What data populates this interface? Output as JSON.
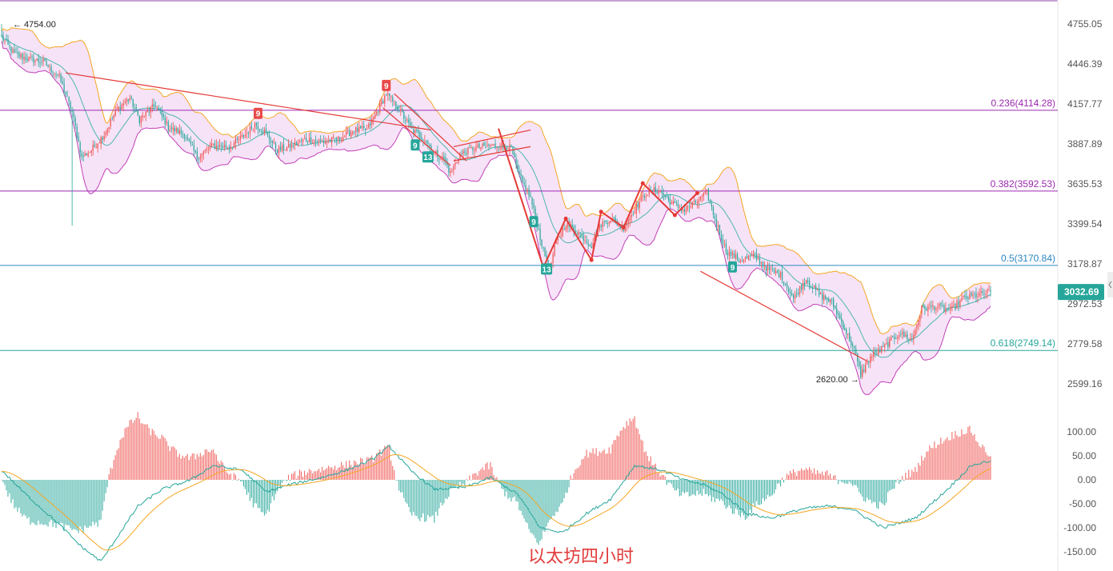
{
  "chart_data": {
    "type": "candlestick",
    "caption": "以太坊四小时",
    "price_axis": {
      "ticks": [
        "4755.05",
        "4446.39",
        "4157.77",
        "3887.89",
        "3635.53",
        "3399.54",
        "3178.87",
        "2972.53",
        "2779.58",
        "2599.16"
      ],
      "tick_values": [
        4755.05,
        4446.39,
        4157.77,
        3887.89,
        3635.53,
        3399.54,
        3178.87,
        2972.53,
        2779.58,
        2599.16
      ],
      "scale": "log"
    },
    "macd_axis": {
      "ticks": [
        "100.00",
        "50.00",
        "0.00",
        "-50.00",
        "-100.00",
        "-150.00"
      ],
      "tick_values": [
        100,
        50,
        0,
        -50,
        -100,
        -150
      ]
    },
    "last_price": {
      "label": "3032.69",
      "value": 3032.69,
      "color": "#26a69a"
    },
    "high_marker": {
      "label": "← 4754.00",
      "value": 4754.0
    },
    "low_marker": {
      "label": "2620.00 →",
      "value": 2620.0
    },
    "fib_levels": [
      {
        "label": "0.236(4114.28)",
        "value": 4114.28,
        "color": "#9c27b0"
      },
      {
        "label": "0.382(3592.53)",
        "value": 3592.53,
        "color": "#9c27b0"
      },
      {
        "label": "0.5(3170.84)",
        "value": 3170.84,
        "color": "#2e86c1"
      },
      {
        "label": "0.618(2749.14)",
        "value": 2749.14,
        "color": "#26a69a"
      }
    ],
    "td_markers": [
      {
        "text": "9",
        "bar": 160,
        "side": "up"
      },
      {
        "text": "9",
        "bar": 240,
        "side": "up"
      },
      {
        "text": "9",
        "bar": 258,
        "side": "down"
      },
      {
        "text": "13",
        "bar": 266,
        "side": "down"
      },
      {
        "text": "9",
        "bar": 332,
        "side": "down"
      },
      {
        "text": "13",
        "bar": 340,
        "side": "down"
      },
      {
        "text": "9",
        "bar": 456,
        "side": "down"
      }
    ],
    "close_path": [
      [
        0,
        4650
      ],
      [
        8,
        4520
      ],
      [
        18,
        4480
      ],
      [
        26,
        4460
      ],
      [
        36,
        4350
      ],
      [
        44,
        4100
      ],
      [
        50,
        3800
      ],
      [
        56,
        3850
      ],
      [
        64,
        3950
      ],
      [
        72,
        4120
      ],
      [
        80,
        4200
      ],
      [
        86,
        4050
      ],
      [
        96,
        4150
      ],
      [
        104,
        4000
      ],
      [
        114,
        3950
      ],
      [
        122,
        3800
      ],
      [
        132,
        3880
      ],
      [
        142,
        3870
      ],
      [
        152,
        3950
      ],
      [
        158,
        4020
      ],
      [
        164,
        3970
      ],
      [
        172,
        3850
      ],
      [
        180,
        3870
      ],
      [
        190,
        3920
      ],
      [
        200,
        3900
      ],
      [
        210,
        3920
      ],
      [
        220,
        3980
      ],
      [
        228,
        3980
      ],
      [
        234,
        4100
      ],
      [
        240,
        4230
      ],
      [
        248,
        4120
      ],
      [
        256,
        3980
      ],
      [
        264,
        3920
      ],
      [
        270,
        3830
      ],
      [
        276,
        3790
      ],
      [
        280,
        3700
      ],
      [
        286,
        3820
      ],
      [
        294,
        3860
      ],
      [
        302,
        3870
      ],
      [
        310,
        3880
      ],
      [
        318,
        3860
      ],
      [
        322,
        3700
      ],
      [
        330,
        3550
      ],
      [
        338,
        3250
      ],
      [
        342,
        3150
      ],
      [
        346,
        3300
      ],
      [
        352,
        3400
      ],
      [
        360,
        3350
      ],
      [
        368,
        3280
      ],
      [
        374,
        3400
      ],
      [
        380,
        3430
      ],
      [
        388,
        3380
      ],
      [
        396,
        3500
      ],
      [
        402,
        3580
      ],
      [
        410,
        3600
      ],
      [
        418,
        3520
      ],
      [
        426,
        3480
      ],
      [
        434,
        3530
      ],
      [
        440,
        3580
      ],
      [
        446,
        3400
      ],
      [
        452,
        3250
      ],
      [
        460,
        3200
      ],
      [
        470,
        3220
      ],
      [
        478,
        3150
      ],
      [
        486,
        3120
      ],
      [
        494,
        3000
      ],
      [
        502,
        3100
      ],
      [
        510,
        3020
      ],
      [
        518,
        2980
      ],
      [
        526,
        2850
      ],
      [
        532,
        2750
      ],
      [
        536,
        2640
      ],
      [
        542,
        2720
      ],
      [
        550,
        2760
      ],
      [
        560,
        2830
      ],
      [
        568,
        2800
      ],
      [
        574,
        2950
      ],
      [
        582,
        2960
      ],
      [
        592,
        2940
      ],
      [
        600,
        3000
      ],
      [
        610,
        3020
      ],
      [
        617,
        3032.69
      ]
    ],
    "macd_path": [
      [
        0,
        20
      ],
      [
        15,
        -30
      ],
      [
        35,
        -90
      ],
      [
        50,
        -140
      ],
      [
        62,
        -170
      ],
      [
        72,
        -120
      ],
      [
        85,
        -55
      ],
      [
        100,
        -20
      ],
      [
        118,
        0
      ],
      [
        132,
        30
      ],
      [
        150,
        20
      ],
      [
        165,
        -25
      ],
      [
        180,
        -10
      ],
      [
        200,
        5
      ],
      [
        215,
        20
      ],
      [
        230,
        40
      ],
      [
        242,
        70
      ],
      [
        255,
        20
      ],
      [
        270,
        -20
      ],
      [
        290,
        -15
      ],
      [
        305,
        5
      ],
      [
        322,
        -30
      ],
      [
        336,
        -100
      ],
      [
        350,
        -110
      ],
      [
        365,
        -70
      ],
      [
        380,
        -40
      ],
      [
        395,
        30
      ],
      [
        412,
        20
      ],
      [
        425,
        0
      ],
      [
        438,
        -10
      ],
      [
        450,
        -30
      ],
      [
        465,
        -70
      ],
      [
        480,
        -80
      ],
      [
        500,
        -60
      ],
      [
        515,
        -55
      ],
      [
        530,
        -60
      ],
      [
        550,
        -100
      ],
      [
        570,
        -80
      ],
      [
        590,
        -20
      ],
      [
        605,
        30
      ],
      [
        617,
        40
      ]
    ],
    "trendlines": [
      {
        "name": "falling-resistance",
        "points": [
          [
            40,
            4380
          ],
          [
            268,
            3980
          ]
        ]
      },
      {
        "name": "falling-channel-top",
        "points": [
          [
            245,
            4230
          ],
          [
            290,
            3780
          ]
        ]
      },
      {
        "name": "falling-channel-bottom",
        "points": [
          [
            238,
            4130
          ],
          [
            280,
            3750
          ]
        ]
      },
      {
        "name": "flag-top",
        "points": [
          [
            282,
            3870
          ],
          [
            330,
            3980
          ]
        ]
      },
      {
        "name": "flag-bottom",
        "points": [
          [
            282,
            3780
          ],
          [
            330,
            3870
          ]
        ]
      },
      {
        "name": "bottom-support",
        "points": [
          [
            436,
            3140
          ],
          [
            540,
            2700
          ]
        ]
      },
      {
        "name": "zigzag",
        "points": [
          [
            310,
            3990
          ],
          [
            338,
            3160
          ],
          [
            352,
            3430
          ],
          [
            368,
            3200
          ],
          [
            374,
            3470
          ],
          [
            388,
            3380
          ],
          [
            400,
            3640
          ],
          [
            420,
            3450
          ],
          [
            434,
            3580
          ]
        ]
      }
    ],
    "bar_count": 618,
    "colors": {
      "up": "#ef5350",
      "down": "#26a69a",
      "band": "#f3d9f5",
      "upper_band": "#f5a623",
      "lower_band": "#c341b8",
      "basis": "#4db6ac"
    }
  }
}
